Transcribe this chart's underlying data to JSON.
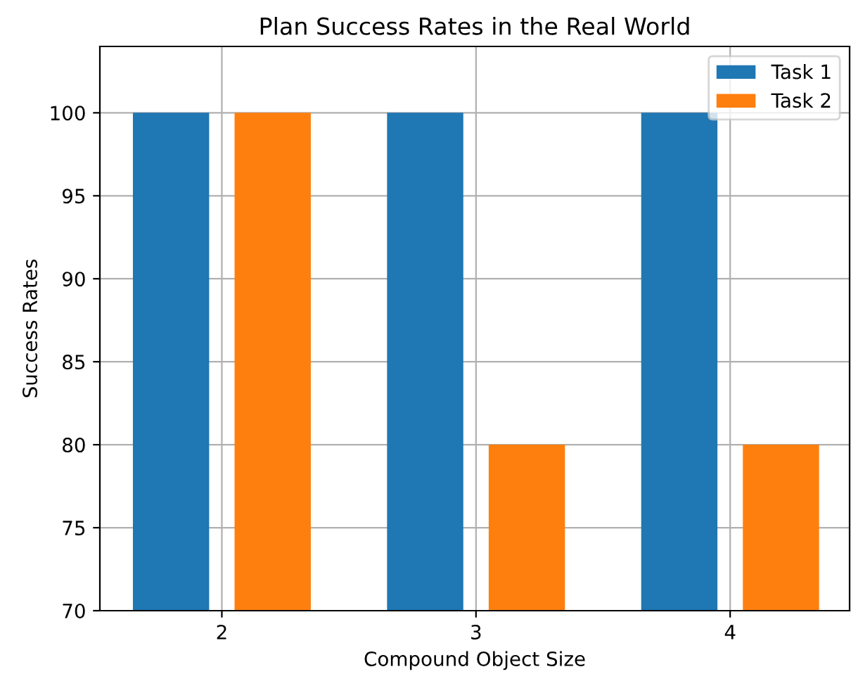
{
  "chart_data": {
    "type": "bar",
    "title": "Plan Success Rates in the Real World",
    "xlabel": "Compound Object Size",
    "ylabel": "Success Rates",
    "categories": [
      "2",
      "3",
      "4"
    ],
    "series": [
      {
        "name": "Task 1",
        "color": "#1f77b4",
        "values": [
          100,
          100,
          100
        ]
      },
      {
        "name": "Task 2",
        "color": "#ff7f0e",
        "values": [
          100,
          80,
          80
        ]
      }
    ],
    "ylim": [
      70,
      104
    ],
    "yticks": [
      70,
      75,
      80,
      85,
      90,
      95,
      100
    ],
    "grid": true,
    "legend": "top right"
  }
}
